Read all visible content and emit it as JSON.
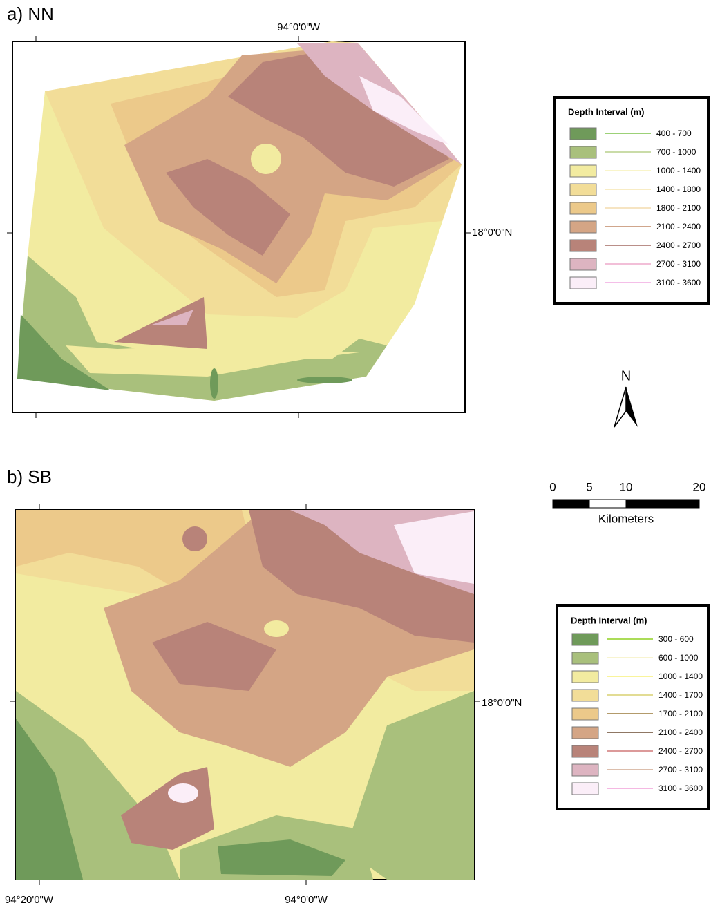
{
  "panel_a": {
    "label": "a) NN",
    "top_lon": "94°0'0\"W",
    "right_lat": "18°0'0\"N",
    "legend": {
      "title": "Depth Interval (m)",
      "items": [
        {
          "label": "400  - 700",
          "fill": "#6f9a5a",
          "line": "#7cc24a"
        },
        {
          "label": "700  - 1000",
          "fill": "#a9c07c",
          "line": "#b8d08c"
        },
        {
          "label": "1000  - 1400",
          "fill": "#f2eba0",
          "line": "#f7f2b8"
        },
        {
          "label": "1400  - 1800",
          "fill": "#f2dd98",
          "line": "#f5e6b0"
        },
        {
          "label": "1800  - 2100",
          "fill": "#ecc98a",
          "line": "#f3dcae"
        },
        {
          "label": "2100  - 2400",
          "fill": "#d4a585",
          "line": "#c08866"
        },
        {
          "label": "2400  - 2700",
          "fill": "#b88379",
          "line": "#a46a62"
        },
        {
          "label": "2700  - 3100",
          "fill": "#ddb4c1",
          "line": "#eeaacc"
        },
        {
          "label": "3100  - 3600",
          "fill": "#fbeef8",
          "line": "#f0a8e0"
        }
      ]
    }
  },
  "panel_b": {
    "label": "b) SB",
    "right_lat": "18°0'0\"N",
    "bottom_lons": [
      "94°20'0\"W",
      "94°0'0\"W"
    ],
    "legend": {
      "title": "Depth Interval (m)",
      "items": [
        {
          "label": "300 - 600",
          "fill": "#6f9a5a",
          "line": "#8fd020"
        },
        {
          "label": "600 - 1000",
          "fill": "#a9c07c",
          "line": "#f5f0c0"
        },
        {
          "label": "1000 - 1400",
          "fill": "#f2eba0",
          "line": "#f7f07a"
        },
        {
          "label": "1400 - 1700",
          "fill": "#f2dd98",
          "line": "#d8d070"
        },
        {
          "label": "1700 - 2100",
          "fill": "#ecc98a",
          "line": "#9a7a3a"
        },
        {
          "label": "2100 - 2400",
          "fill": "#d4a585",
          "line": "#6a4a30"
        },
        {
          "label": "2400 - 2700",
          "fill": "#b88379",
          "line": "#d07878"
        },
        {
          "label": "2700 - 3100",
          "fill": "#ddb4c1",
          "line": "#d0a890"
        },
        {
          "label": "3100 - 3600",
          "fill": "#fbeef8",
          "line": "#f0a0d8"
        }
      ]
    }
  },
  "north": "N",
  "scale": {
    "ticks": [
      0,
      5,
      10,
      20
    ],
    "unit": "Kilometers"
  }
}
